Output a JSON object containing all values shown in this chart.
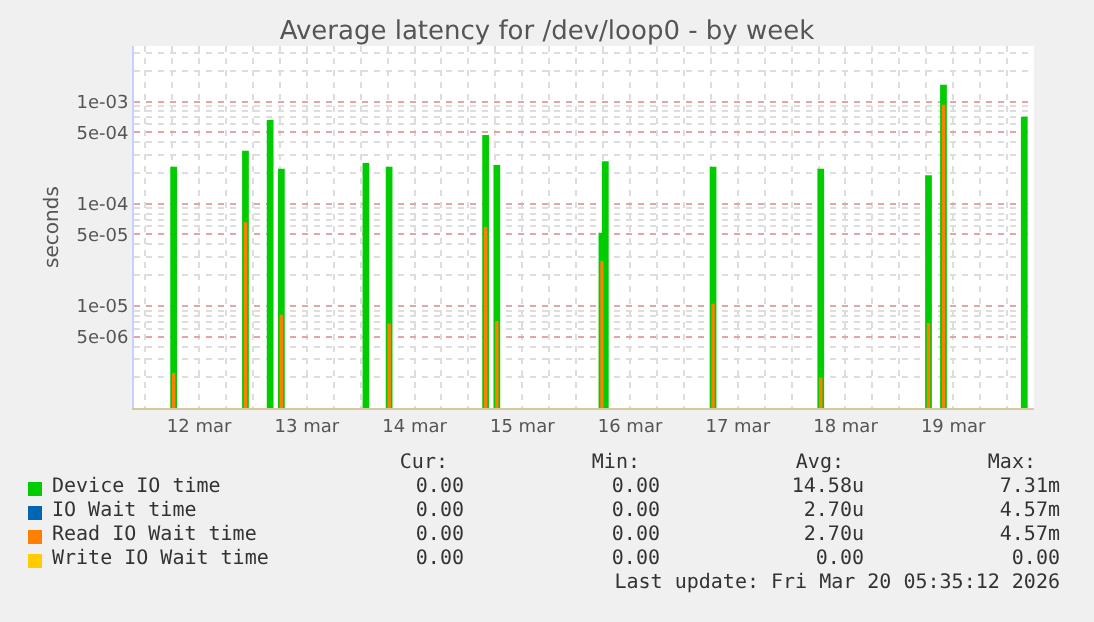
{
  "chart_data": {
    "type": "bar",
    "title": "Average latency for /dev/loop0 - by week",
    "ylabel": "seconds",
    "log": true,
    "grid": true,
    "legend": "bottom",
    "x": [
      "2026-03-12T06:20",
      "2026-03-12T22:20",
      "2026-03-13T03:50",
      "2026-03-13T06:20",
      "2026-03-14T01:10",
      "2026-03-14T06:20",
      "2026-03-15T03:50",
      "2026-03-15T06:20",
      "2026-03-16T05:45",
      "2026-03-16T06:30",
      "2026-03-17T06:30",
      "2026-03-18T06:30",
      "2026-03-19T06:30",
      "2026-03-19T09:50",
      "2026-03-20T03:50"
    ],
    "series": [
      {
        "name": "Device IO time",
        "color": "#00cc00",
        "values": [
          0.00023,
          0.00033,
          0.00066,
          0.00022,
          0.00025,
          0.00023,
          0.00047,
          0.00024,
          5.2e-05,
          0.00026,
          0.00023,
          0.00022,
          0.00019,
          0.00146,
          0.00071
        ]
      },
      {
        "name": "IO Wait time",
        "color": "#0066b3",
        "values": [
          null,
          null,
          null,
          null,
          null,
          null,
          null,
          null,
          null,
          null,
          null,
          null,
          null,
          null,
          null
        ]
      },
      {
        "name": "Read IO Wait time",
        "color": "#ff8000",
        "values": [
          2.2e-06,
          6.6e-05,
          null,
          8.2e-06,
          null,
          6.7e-06,
          5.9e-05,
          7.1e-06,
          2.75e-05,
          null,
          1.05e-05,
          2e-06,
          6.8e-06,
          0.00093,
          null
        ]
      },
      {
        "name": "Write IO Wait time",
        "color": "#ffcc00",
        "values": [
          null,
          null,
          null,
          null,
          null,
          null,
          null,
          null,
          null,
          null,
          null,
          null,
          null,
          null,
          null
        ]
      }
    ],
    "xlim": [
      "2026-03-11T21:30",
      "2026-03-20T06:00"
    ],
    "xticks": [
      {
        "value": "2026-03-12T12:00",
        "label": "12 mar"
      },
      {
        "value": "2026-03-13T12:00",
        "label": "13 mar"
      },
      {
        "value": "2026-03-14T12:00",
        "label": "14 mar"
      },
      {
        "value": "2026-03-15T12:00",
        "label": "15 mar"
      },
      {
        "value": "2026-03-16T12:00",
        "label": "16 mar"
      },
      {
        "value": "2026-03-17T12:00",
        "label": "17 mar"
      },
      {
        "value": "2026-03-18T12:00",
        "label": "18 mar"
      },
      {
        "value": "2026-03-19T12:00",
        "label": "19 mar"
      }
    ],
    "ylim": [
      1e-06,
      0.0035
    ],
    "yticks": [
      {
        "value": 5e-06,
        "label": "5e-06"
      },
      {
        "value": 1e-05,
        "label": "1e-05"
      },
      {
        "value": 5e-05,
        "label": "5e-05"
      },
      {
        "value": 0.0001,
        "label": "1e-04"
      },
      {
        "value": 0.0005,
        "label": "5e-04"
      },
      {
        "value": 0.001,
        "label": "1e-03"
      }
    ],
    "annotations": [
      "Cur:",
      "Min:",
      "Avg:",
      "Max:",
      "0.00",
      "0.00",
      "14.58u",
      "7.31m",
      "0.00",
      "0.00",
      "2.70u",
      "4.57m",
      "0.00",
      "0.00",
      "2.70u",
      "4.57m",
      "0.00",
      "0.00",
      "0.00",
      "0.00",
      "Last update: Fri Mar 20 05:35:12 2026"
    ]
  }
}
